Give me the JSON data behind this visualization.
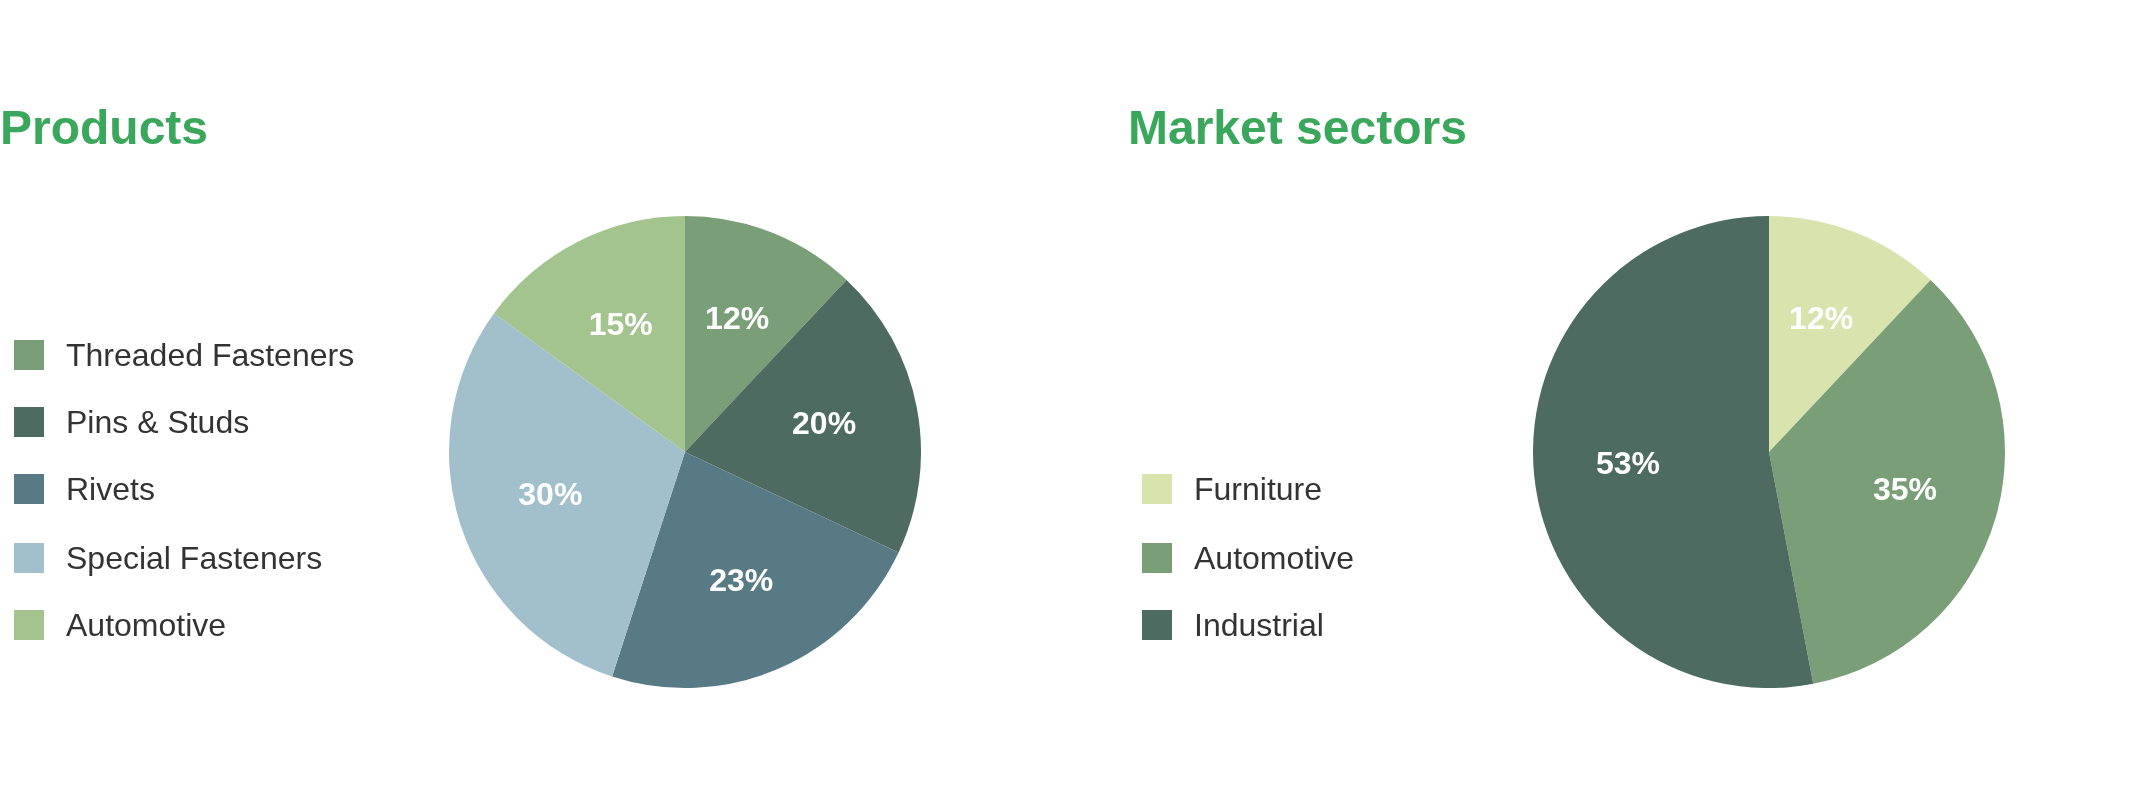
{
  "chart_data": [
    {
      "type": "pie",
      "title": "Products",
      "categories": [
        "Threaded Fasteners",
        "Pins & Studs",
        "Rivets",
        "Special Fasteners",
        "Automotive"
      ],
      "values": [
        12,
        20,
        23,
        30,
        15
      ],
      "value_labels": [
        "12%",
        "20%",
        "23%",
        "30%",
        "15%"
      ],
      "colors": [
        "#7a9e78",
        "#4d6b60",
        "#587a85",
        "#a1c0cc",
        "#a3c48e"
      ],
      "legend": "left"
    },
    {
      "type": "pie",
      "title": "Market sectors",
      "categories": [
        "Furniture",
        "Automotive",
        "Industrial"
      ],
      "values": [
        12,
        35,
        53
      ],
      "value_labels": [
        "12%",
        "35%",
        "53%"
      ],
      "colors": [
        "#d9e3ae",
        "#7a9e78",
        "#4d6b60"
      ],
      "legend": "left"
    }
  ]
}
